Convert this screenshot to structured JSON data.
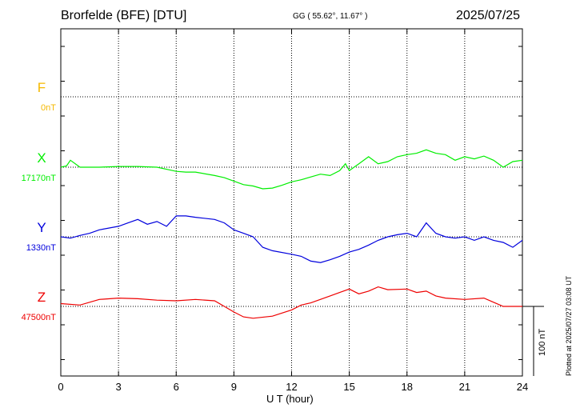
{
  "header": {
    "station": "Brorfelde (BFE)  [DTU]",
    "coords": "GG ( 55.62°,  11.67° )",
    "date": "2025/07/25",
    "plotted": "Plotted at 2025/07/27 03:08 UT"
  },
  "chart_data": {
    "type": "line",
    "xlabel": "U T (hour)",
    "ylabel": "",
    "x_ticks": [
      "0",
      "3",
      "6",
      "9",
      "12",
      "15",
      "18",
      "21",
      "24"
    ],
    "xlim": [
      0,
      24
    ],
    "scale_label": "100 nT",
    "grid": true,
    "colors": {
      "F": "#f5b800",
      "X": "#00ee00",
      "Y": "#0000dd",
      "Z": "#ee0000"
    },
    "channels": [
      {
        "name": "F",
        "baseline_label": "0nT",
        "x": [],
        "values": []
      },
      {
        "name": "X",
        "baseline_label": "17170nT",
        "x": [
          0,
          0.3,
          0.5,
          1,
          2,
          3,
          4,
          5,
          5.5,
          6,
          6.5,
          7,
          8,
          8.5,
          9,
          9.5,
          10,
          10.5,
          11,
          11.5,
          12,
          12.5,
          13,
          13.5,
          14,
          14.5,
          14.8,
          15,
          15.5,
          16,
          16.5,
          17,
          17.5,
          18,
          18.5,
          19,
          19.5,
          20,
          20.5,
          21,
          21.5,
          22,
          22.5,
          23,
          23.5,
          24
        ],
        "values": [
          0,
          2,
          10,
          0,
          0,
          1,
          1,
          0,
          -3,
          -6,
          -7,
          -7,
          -12,
          -15,
          -20,
          -25,
          -27,
          -31,
          -30,
          -26,
          -21,
          -18,
          -14,
          -10,
          -12,
          -5,
          5,
          -5,
          5,
          15,
          5,
          8,
          15,
          18,
          20,
          25,
          20,
          18,
          10,
          15,
          12,
          16,
          10,
          0,
          8,
          10
        ]
      },
      {
        "name": "Y",
        "baseline_label": "1330nT",
        "x": [
          0,
          0.5,
          1,
          1.5,
          2,
          3,
          3.5,
          4,
          4.5,
          5,
          5.5,
          6,
          6.5,
          7,
          8,
          8.5,
          9,
          9.5,
          10,
          10.5,
          11,
          12,
          12.5,
          13,
          13.5,
          14,
          14.5,
          15,
          15.5,
          16,
          16.5,
          17,
          17.5,
          18,
          18.5,
          19,
          19.5,
          20,
          20.5,
          21,
          21.5,
          22,
          22.5,
          23,
          23.5,
          24
        ],
        "values": [
          0,
          -2,
          2,
          5,
          10,
          15,
          20,
          25,
          18,
          22,
          15,
          30,
          30,
          28,
          25,
          20,
          10,
          5,
          0,
          -15,
          -20,
          -25,
          -28,
          -35,
          -37,
          -33,
          -28,
          -22,
          -18,
          -12,
          -5,
          0,
          3,
          5,
          0,
          20,
          5,
          0,
          -2,
          0,
          -5,
          0,
          -5,
          -8,
          -15,
          -5
        ]
      },
      {
        "name": "Z",
        "baseline_label": "47500nT",
        "x": [
          0,
          1,
          2,
          3,
          4,
          5,
          6,
          7,
          8,
          8.5,
          9,
          9.5,
          10,
          11,
          12,
          12.5,
          13,
          14,
          14.5,
          15,
          15.5,
          16,
          16.5,
          17,
          18,
          18.5,
          19,
          19.5,
          20,
          21,
          22,
          22.5,
          23,
          24
        ],
        "values": [
          4,
          2,
          10,
          12,
          11,
          9,
          8,
          10,
          8,
          0,
          -8,
          -15,
          -17,
          -14,
          -5,
          2,
          5,
          15,
          20,
          25,
          18,
          22,
          28,
          24,
          25,
          20,
          22,
          15,
          12,
          10,
          12,
          6,
          0,
          0
        ]
      }
    ]
  }
}
